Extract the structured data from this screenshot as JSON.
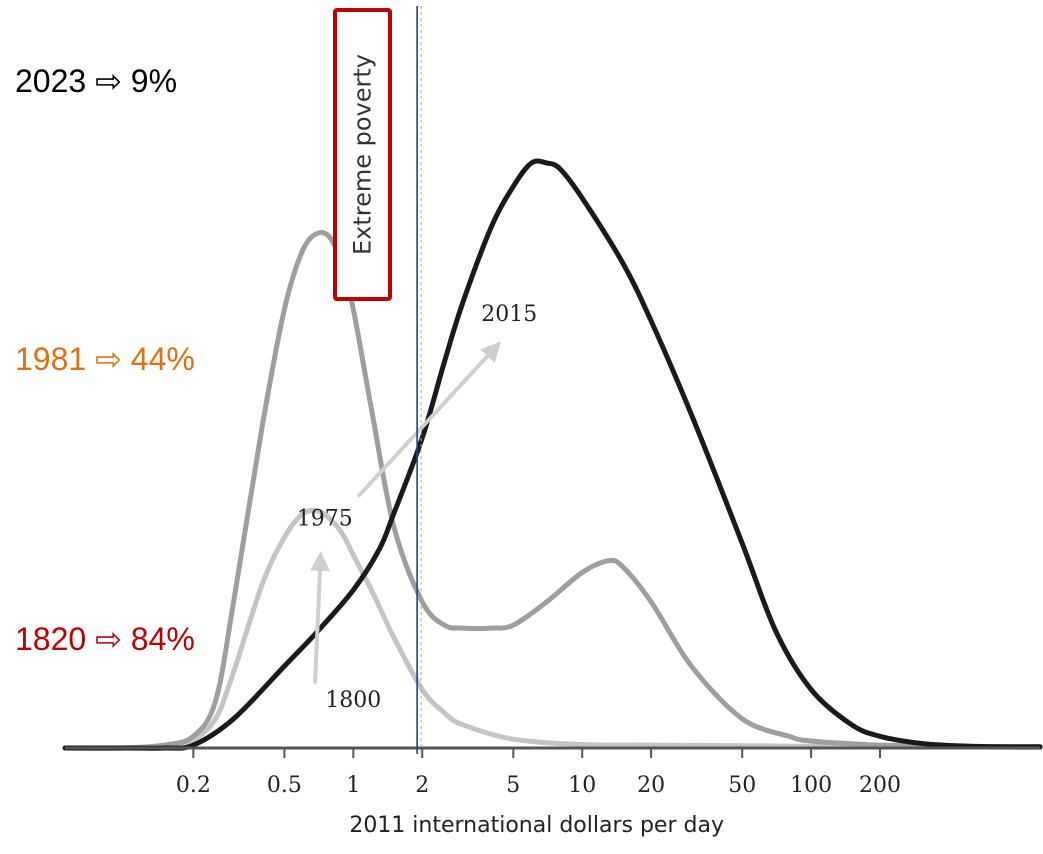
{
  "chart_data": {
    "type": "area",
    "x_scale": "log",
    "xlabel": "2011 international dollars per day",
    "x_ticks": [
      0.2,
      0.5,
      1,
      2,
      5,
      10,
      20,
      50,
      100,
      200
    ],
    "x_tick_labels": [
      "0.2",
      "0.5",
      "1",
      "2",
      "5",
      "10",
      "20",
      "50",
      "100",
      "200"
    ],
    "xlim": [
      0.055,
      1000
    ],
    "ylim": [
      0,
      1
    ],
    "grid": false,
    "poverty_line": {
      "x": 1.9,
      "label": "Extreme poverty",
      "box_color": "#c00000"
    },
    "series": [
      {
        "name": "1800",
        "color": "#c4c4c4",
        "x": [
          0.055,
          0.1,
          0.15,
          0.2,
          0.25,
          0.3,
          0.4,
          0.5,
          0.6,
          0.7,
          0.8,
          0.9,
          1.0,
          1.2,
          1.5,
          2.0,
          2.5,
          3,
          5,
          10,
          20,
          50,
          100,
          200,
          500,
          1000
        ],
        "y": [
          0.0,
          0.0,
          0.005,
          0.015,
          0.05,
          0.13,
          0.28,
          0.36,
          0.4,
          0.405,
          0.39,
          0.365,
          0.33,
          0.27,
          0.19,
          0.1,
          0.06,
          0.04,
          0.015,
          0.006,
          0.005,
          0.004,
          0.003,
          0.003,
          0.002,
          0.002
        ]
      },
      {
        "name": "1975",
        "color": "#9e9e9e",
        "x": [
          0.055,
          0.1,
          0.15,
          0.2,
          0.25,
          0.3,
          0.4,
          0.5,
          0.6,
          0.7,
          0.8,
          0.9,
          1.0,
          1.2,
          1.5,
          2.0,
          2.5,
          3,
          4,
          5,
          7,
          10,
          13,
          15,
          20,
          30,
          50,
          80,
          100,
          200,
          500,
          1000
        ],
        "y": [
          0.0,
          0.0,
          0.005,
          0.02,
          0.08,
          0.25,
          0.55,
          0.75,
          0.85,
          0.88,
          0.87,
          0.82,
          0.75,
          0.58,
          0.38,
          0.25,
          0.21,
          0.205,
          0.205,
          0.21,
          0.25,
          0.3,
          0.32,
          0.31,
          0.25,
          0.14,
          0.05,
          0.02,
          0.012,
          0.005,
          0.002,
          0.001
        ]
      },
      {
        "name": "2015",
        "color": "#1a1a1a",
        "x": [
          0.055,
          0.1,
          0.15,
          0.2,
          0.3,
          0.5,
          0.7,
          1.0,
          1.3,
          1.5,
          2.0,
          2.5,
          3,
          4,
          5,
          6,
          7,
          8,
          10,
          15,
          20,
          30,
          50,
          70,
          100,
          150,
          200,
          300,
          500,
          1000
        ],
        "y": [
          0.0,
          0.0,
          0.0,
          0.005,
          0.05,
          0.14,
          0.2,
          0.27,
          0.34,
          0.4,
          0.53,
          0.66,
          0.76,
          0.89,
          0.96,
          1.0,
          1.0,
          0.99,
          0.94,
          0.83,
          0.73,
          0.57,
          0.35,
          0.2,
          0.1,
          0.04,
          0.02,
          0.008,
          0.003,
          0.002
        ]
      }
    ],
    "annotations": [
      {
        "text": "1800",
        "x": 1.0,
        "y": 0.07
      },
      {
        "text": "1975",
        "x": 0.75,
        "y": 0.38
      },
      {
        "text": "2015",
        "x": 4.8,
        "y": 0.73
      }
    ],
    "arrows": [
      {
        "from": [
          0.68,
          0.11
        ],
        "to": [
          0.72,
          0.33
        ]
      },
      {
        "from": [
          1.05,
          0.43
        ],
        "to": [
          4.3,
          0.69
        ]
      }
    ],
    "side_stats": [
      {
        "year": "2023",
        "arrow": "⇨",
        "value": "9%",
        "color": "#000000"
      },
      {
        "year": "1981",
        "arrow": "⇨",
        "value": "44%",
        "color": "#e07010"
      },
      {
        "year": "1820",
        "arrow": "⇨",
        "value": "84%",
        "color": "#c00000"
      }
    ]
  }
}
